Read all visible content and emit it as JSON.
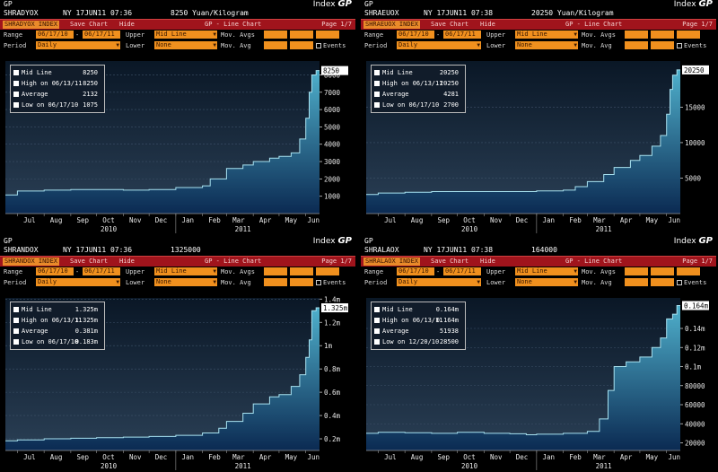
{
  "panels": [
    {
      "ticker": "SHRADYOX",
      "timestamp": "NY 17JUN11 07:36",
      "headline": "8250 Yuan/Kilogram",
      "index_label": "Index",
      "logo": "GP",
      "security": "SHRADYOX INDEX",
      "save_chart": "Save Chart",
      "hide": "Hide",
      "chart_title": "GP - Line Chart",
      "page": "Page 1/7",
      "range_label": "Range",
      "start_date": "06/17/10",
      "end_date": "06/17/11",
      "upper_label": "Upper",
      "upper_value": "Mid Line",
      "mov_avgs_label": "Mov. Avgs",
      "period_label": "Period",
      "period_value": "Daily",
      "lower_label": "Lower",
      "lower_value": "None",
      "mov_avg_label": "Mov. Avg",
      "events_label": "Events",
      "legend": [
        {
          "label": "Mid Line",
          "value": "8250"
        },
        {
          "label": "High on 06/13/11",
          "value": "8250"
        },
        {
          "label": "Average",
          "value": "2132"
        },
        {
          "label": "Low on 06/17/10",
          "value": "1075"
        }
      ],
      "current_label": "8250",
      "chart_data": {
        "type": "area",
        "ylim": [
          0,
          8800
        ],
        "yticks": [
          1000,
          2000,
          3000,
          4000,
          5000,
          6000,
          7000,
          8000
        ],
        "ytick_labels": [
          "1000",
          "2000",
          "3000",
          "4000",
          "5000",
          "6000",
          "7000",
          "8000"
        ],
        "xticks": [
          "Jul",
          "Aug",
          "Sep",
          "Oct",
          "Nov",
          "Dec",
          "Jan",
          "Feb",
          "Mar",
          "Apr",
          "May",
          "Jun"
        ],
        "years": [
          "2010",
          "2011"
        ],
        "x": [
          "2010-06-17",
          "2010-07-01",
          "2010-08-01",
          "2010-09-01",
          "2010-10-01",
          "2010-11-01",
          "2010-12-01",
          "2011-01-01",
          "2011-02-01",
          "2011-02-10",
          "2011-03-01",
          "2011-03-20",
          "2011-04-01",
          "2011-04-20",
          "2011-05-01",
          "2011-05-15",
          "2011-05-25",
          "2011-06-01",
          "2011-06-05",
          "2011-06-08",
          "2011-06-13",
          "2011-06-17"
        ],
        "values": [
          1075,
          1300,
          1350,
          1380,
          1380,
          1350,
          1380,
          1500,
          1600,
          2000,
          2600,
          2800,
          3000,
          3200,
          3300,
          3500,
          4300,
          5500,
          7000,
          8000,
          8250,
          8250
        ]
      }
    },
    {
      "ticker": "SHRAEUOX",
      "timestamp": "NY 17JUN11 07:38",
      "headline": "20250 Yuan/Kilogram",
      "index_label": "Index",
      "logo": "GP",
      "security": "SHRAEUOX INDEX",
      "save_chart": "Save Chart",
      "hide": "Hide",
      "chart_title": "GP - Line Chart",
      "page": "Page 1/7",
      "range_label": "Range",
      "start_date": "06/17/10",
      "end_date": "06/17/11",
      "upper_label": "Upper",
      "upper_value": "Mid Line",
      "mov_avgs_label": "Mov. Avgs",
      "period_label": "Period",
      "period_value": "Daily",
      "lower_label": "Lower",
      "lower_value": "None",
      "mov_avg_label": "Mov. Avg",
      "events_label": "Events",
      "legend": [
        {
          "label": "Mid Line",
          "value": "20250"
        },
        {
          "label": "High on 06/13/11",
          "value": "20250"
        },
        {
          "label": "Average",
          "value": "4281"
        },
        {
          "label": "Low on 06/17/10",
          "value": "2700"
        }
      ],
      "current_label": "20250",
      "chart_data": {
        "type": "area",
        "ylim": [
          0,
          21500
        ],
        "yticks": [
          5000,
          10000,
          15000
        ],
        "ytick_labels": [
          "5000",
          "10000",
          "15000"
        ],
        "xticks": [
          "Jul",
          "Aug",
          "Sep",
          "Oct",
          "Nov",
          "Dec",
          "Jan",
          "Feb",
          "Mar",
          "Apr",
          "May",
          "Jun"
        ],
        "years": [
          "2010",
          "2011"
        ],
        "x": [
          "2010-06-17",
          "2010-07-01",
          "2010-08-01",
          "2010-09-01",
          "2010-10-01",
          "2010-11-01",
          "2010-12-01",
          "2011-01-01",
          "2011-02-01",
          "2011-02-15",
          "2011-03-01",
          "2011-03-20",
          "2011-04-01",
          "2011-04-20",
          "2011-05-01",
          "2011-05-15",
          "2011-05-25",
          "2011-06-01",
          "2011-06-05",
          "2011-06-08",
          "2011-06-13",
          "2011-06-17"
        ],
        "values": [
          2700,
          2900,
          3000,
          3100,
          3100,
          3100,
          3100,
          3200,
          3300,
          3800,
          4500,
          5500,
          6500,
          7500,
          8200,
          9500,
          11000,
          14000,
          17500,
          19500,
          20250,
          20250
        ]
      }
    },
    {
      "ticker": "SHRANDOX",
      "timestamp": "NY 17JUN11 07:36",
      "headline": "1325000",
      "index_label": "Index",
      "logo": "GP",
      "security": "SHRANDOX INDEX",
      "save_chart": "Save Chart",
      "hide": "Hide",
      "chart_title": "GP - Line Chart",
      "page": "Page 1/7",
      "range_label": "Range",
      "start_date": "06/17/10",
      "end_date": "06/17/11",
      "upper_label": "Upper",
      "upper_value": "Mid Line",
      "mov_avgs_label": "Mov. Avgs",
      "period_label": "Period",
      "period_value": "Daily",
      "lower_label": "Lower",
      "lower_value": "None",
      "mov_avg_label": "Mov. Avg",
      "events_label": "Events",
      "legend": [
        {
          "label": "Mid Line",
          "value": "1.325m"
        },
        {
          "label": "High on 06/13/11",
          "value": "1.325m"
        },
        {
          "label": "Average",
          "value": "0.381m"
        },
        {
          "label": "Low on 06/17/10",
          "value": "0.183m"
        }
      ],
      "current_label": "1.325m",
      "chart_data": {
        "type": "area",
        "ylim": [
          100000,
          1410000
        ],
        "yticks": [
          200000,
          400000,
          600000,
          800000,
          1000000,
          1200000,
          1400000
        ],
        "ytick_labels": [
          "0.2m",
          "0.4m",
          "0.6m",
          "0.8m",
          "1m",
          "1.2m",
          "1.4m"
        ],
        "xticks": [
          "Jul",
          "Aug",
          "Sep",
          "Oct",
          "Nov",
          "Dec",
          "Jan",
          "Feb",
          "Mar",
          "Apr",
          "May",
          "Jun"
        ],
        "years": [
          "2010",
          "2011"
        ],
        "x": [
          "2010-06-17",
          "2010-07-01",
          "2010-08-01",
          "2010-09-01",
          "2010-10-01",
          "2010-11-01",
          "2010-12-01",
          "2011-01-01",
          "2011-02-01",
          "2011-02-20",
          "2011-03-01",
          "2011-03-20",
          "2011-04-01",
          "2011-04-20",
          "2011-05-01",
          "2011-05-15",
          "2011-05-25",
          "2011-06-01",
          "2011-06-05",
          "2011-06-08",
          "2011-06-13",
          "2011-06-17"
        ],
        "values": [
          183000,
          190000,
          200000,
          205000,
          210000,
          215000,
          220000,
          230000,
          250000,
          290000,
          350000,
          420000,
          500000,
          560000,
          580000,
          650000,
          750000,
          900000,
          1050000,
          1300000,
          1325000,
          1325000
        ]
      }
    },
    {
      "ticker": "SHRALAOX",
      "timestamp": "NY 17JUN11 07:38",
      "headline": "164000",
      "index_label": "Index",
      "logo": "GP",
      "security": "SHRALAOX INDEX",
      "save_chart": "Save Chart",
      "hide": "Hide",
      "chart_title": "GP - Line Chart",
      "page": "Page 1/7",
      "range_label": "Range",
      "start_date": "06/17/10",
      "end_date": "06/17/11",
      "upper_label": "Upper",
      "upper_value": "Mid Line",
      "mov_avgs_label": "Mov. Avgs",
      "period_label": "Period",
      "period_value": "Daily",
      "lower_label": "Lower",
      "lower_value": "None",
      "mov_avg_label": "Mov. Avg",
      "events_label": "Events",
      "legend": [
        {
          "label": "Mid Line",
          "value": "0.164m"
        },
        {
          "label": "High on 06/13/11",
          "value": "0.164m"
        },
        {
          "label": "Average",
          "value": "51938"
        },
        {
          "label": "Low on 12/20/10",
          "value": "28500"
        }
      ],
      "current_label": "0.164m",
      "chart_data": {
        "type": "area",
        "ylim": [
          12000,
          172000
        ],
        "yticks": [
          20000,
          40000,
          60000,
          80000,
          100000,
          120000,
          140000
        ],
        "ytick_labels": [
          "20000",
          "40000",
          "60000",
          "80000",
          "0.1m",
          "0.12m",
          "0.14m"
        ],
        "xticks": [
          "Jul",
          "Aug",
          "Sep",
          "Oct",
          "Nov",
          "Dec",
          "Jan",
          "Feb",
          "Mar",
          "Apr",
          "May",
          "Jun"
        ],
        "years": [
          "2010",
          "2011"
        ],
        "x": [
          "2010-06-17",
          "2010-07-01",
          "2010-08-01",
          "2010-09-01",
          "2010-10-01",
          "2010-11-01",
          "2010-12-01",
          "2010-12-20",
          "2011-01-01",
          "2011-02-01",
          "2011-03-01",
          "2011-03-15",
          "2011-03-25",
          "2011-04-01",
          "2011-04-15",
          "2011-05-01",
          "2011-05-15",
          "2011-05-25",
          "2011-06-01",
          "2011-06-08",
          "2011-06-13",
          "2011-06-17"
        ],
        "values": [
          30000,
          31000,
          30500,
          30000,
          31000,
          30000,
          29500,
          28500,
          29000,
          30000,
          32000,
          45000,
          75000,
          100000,
          105000,
          110000,
          120000,
          130000,
          150000,
          155000,
          164000,
          164000
        ]
      }
    }
  ]
}
